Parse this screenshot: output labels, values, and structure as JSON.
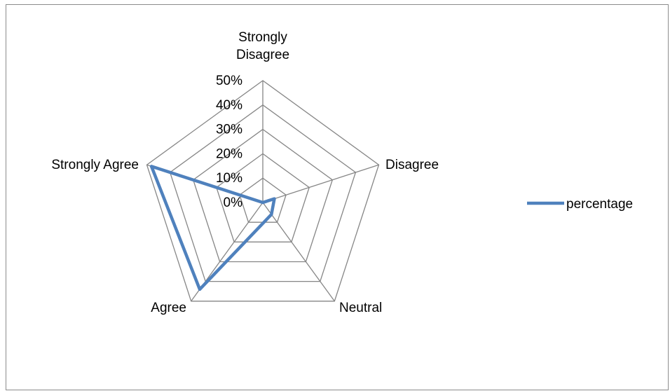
{
  "chart_data": {
    "type": "radar",
    "categories": [
      "Strongly Disagree",
      "Disagree",
      "Neutral",
      "Agree",
      "Strongly Agree"
    ],
    "category_label_lines": [
      [
        "Strongly",
        "Disagree"
      ],
      [
        "Disagree"
      ],
      [
        "Neutral"
      ],
      [
        "Agree"
      ],
      [
        "Strongly Agree"
      ]
    ],
    "series": [
      {
        "name": "percentage",
        "values": [
          0,
          5,
          6,
          44,
          48
        ]
      }
    ],
    "axis_ticks": [
      0,
      10,
      20,
      30,
      40,
      50
    ],
    "tick_labels": [
      "0%",
      "10%",
      "20%",
      "30%",
      "40%",
      "50%"
    ],
    "rlim": [
      0,
      50
    ],
    "grid": true,
    "legend_position": "right",
    "colors": {
      "series": "#4f81bd",
      "grid": "#868686",
      "frame": "#8c8c8c"
    }
  }
}
